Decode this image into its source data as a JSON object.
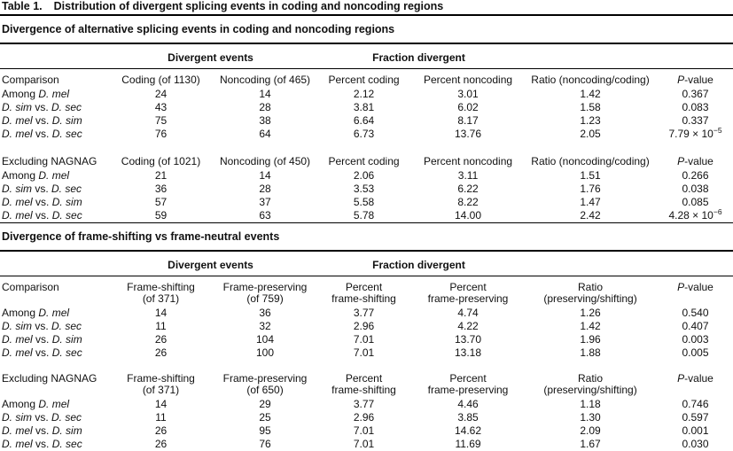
{
  "caption": {
    "label": "Table 1.",
    "text": "Distribution of divergent splicing events in coding and noncoding regions"
  },
  "sections": [
    {
      "title": "Divergence of alternative splicing events in coding and noncoding regions",
      "spanners": [
        "Divergent events",
        "Fraction divergent"
      ],
      "blocks": [
        {
          "header": [
            "Comparison",
            "Coding (of 1130)",
            "Noncoding (of 465)",
            "Percent coding",
            "Percent noncoding",
            "Ratio (noncoding/coding)",
            [
              {
                "t": "P",
                "i": true
              },
              {
                "t": "-value"
              }
            ]
          ],
          "rows": [
            [
              [
                {
                  "t": "Among "
                },
                {
                  "t": "D. mel",
                  "i": true
                }
              ],
              "24",
              "14",
              "2.12",
              "3.01",
              "1.42",
              "0.367"
            ],
            [
              [
                {
                  "t": "D. sim",
                  "i": true
                },
                {
                  "t": " vs. "
                },
                {
                  "t": "D. sec",
                  "i": true
                }
              ],
              "43",
              "28",
              "3.81",
              "6.02",
              "1.58",
              "0.083"
            ],
            [
              [
                {
                  "t": "D. mel",
                  "i": true
                },
                {
                  "t": " vs. "
                },
                {
                  "t": "D. sim",
                  "i": true
                }
              ],
              "75",
              "38",
              "6.64",
              "8.17",
              "1.23",
              "0.337"
            ],
            [
              [
                {
                  "t": "D. mel",
                  "i": true
                },
                {
                  "t": " vs. "
                },
                {
                  "t": "D. sec",
                  "i": true
                }
              ],
              "76",
              "64",
              "6.73",
              "13.76",
              "2.05",
              [
                {
                  "t": "7.79 × 10"
                },
                {
                  "t": "−5",
                  "sup": true
                }
              ]
            ]
          ]
        },
        {
          "header": [
            "Excluding NAGNAG",
            "Coding (of 1021)",
            "Noncoding (of 450)",
            "Percent coding",
            "Percent noncoding",
            "Ratio (noncoding/coding)",
            [
              {
                "t": "P",
                "i": true
              },
              {
                "t": "-value"
              }
            ]
          ],
          "rows": [
            [
              [
                {
                  "t": "Among "
                },
                {
                  "t": "D. mel",
                  "i": true
                }
              ],
              "21",
              "14",
              "2.06",
              "3.11",
              "1.51",
              "0.266"
            ],
            [
              [
                {
                  "t": "D. sim",
                  "i": true
                },
                {
                  "t": " vs. "
                },
                {
                  "t": "D. sec",
                  "i": true
                }
              ],
              "36",
              "28",
              "3.53",
              "6.22",
              "1.76",
              "0.038"
            ],
            [
              [
                {
                  "t": "D. mel",
                  "i": true
                },
                {
                  "t": " vs. "
                },
                {
                  "t": "D. sim",
                  "i": true
                }
              ],
              "57",
              "37",
              "5.58",
              "8.22",
              "1.47",
              "0.085"
            ],
            [
              [
                {
                  "t": "D. mel",
                  "i": true
                },
                {
                  "t": " vs. "
                },
                {
                  "t": "D. sec",
                  "i": true
                }
              ],
              "59",
              "63",
              "5.78",
              "14.00",
              "2.42",
              [
                {
                  "t": "4.28 × 10"
                },
                {
                  "t": "−6",
                  "sup": true
                }
              ]
            ]
          ]
        }
      ]
    },
    {
      "title": "Divergence of frame-shifting vs frame-neutral events",
      "spanners": [
        "Divergent events",
        "Fraction divergent"
      ],
      "blocks": [
        {
          "header": [
            "Comparison",
            "Frame-shifting\n(of 371)",
            "Frame-preserving\n(of 759)",
            "Percent\nframe-shifting",
            "Percent\nframe-preserving",
            "Ratio\n(preserving/shifting)",
            [
              {
                "t": "P",
                "i": true
              },
              {
                "t": "-value"
              }
            ]
          ],
          "rows": [
            [
              [
                {
                  "t": "Among "
                },
                {
                  "t": "D. mel",
                  "i": true
                }
              ],
              "14",
              "36",
              "3.77",
              "4.74",
              "1.26",
              "0.540"
            ],
            [
              [
                {
                  "t": "D. sim",
                  "i": true
                },
                {
                  "t": " vs. "
                },
                {
                  "t": "D. sec",
                  "i": true
                }
              ],
              "11",
              "32",
              "2.96",
              "4.22",
              "1.42",
              "0.407"
            ],
            [
              [
                {
                  "t": "D. mel",
                  "i": true
                },
                {
                  "t": " vs. "
                },
                {
                  "t": "D. sim",
                  "i": true
                }
              ],
              "26",
              "104",
              "7.01",
              "13.70",
              "1.96",
              "0.003"
            ],
            [
              [
                {
                  "t": "D. mel",
                  "i": true
                },
                {
                  "t": " vs. "
                },
                {
                  "t": "D. sec",
                  "i": true
                }
              ],
              "26",
              "100",
              "7.01",
              "13.18",
              "1.88",
              "0.005"
            ]
          ]
        },
        {
          "header": [
            "Excluding NAGNAG",
            "Frame-shifting\n(of 371)",
            "Frame-preserving\n(of 650)",
            "Percent\nframe-shifting",
            "Percent\nframe-preserving",
            "Ratio\n(preserving/shifting)",
            [
              {
                "t": "P",
                "i": true
              },
              {
                "t": "-value"
              }
            ]
          ],
          "rows": [
            [
              [
                {
                  "t": "Among "
                },
                {
                  "t": "D. mel",
                  "i": true
                }
              ],
              "14",
              "29",
              "3.77",
              "4.46",
              "1.18",
              "0.746"
            ],
            [
              [
                {
                  "t": "D. sim",
                  "i": true
                },
                {
                  "t": " vs. "
                },
                {
                  "t": "D. sec",
                  "i": true
                }
              ],
              "11",
              "25",
              "2.96",
              "3.85",
              "1.30",
              "0.597"
            ],
            [
              [
                {
                  "t": "D. mel",
                  "i": true
                },
                {
                  "t": " vs. "
                },
                {
                  "t": "D. sim",
                  "i": true
                }
              ],
              "26",
              "95",
              "7.01",
              "14.62",
              "2.09",
              "0.001"
            ],
            [
              [
                {
                  "t": "D. mel",
                  "i": true
                },
                {
                  "t": " vs. "
                },
                {
                  "t": "D. sec",
                  "i": true
                }
              ],
              "26",
              "76",
              "7.01",
              "11.69",
              "1.67",
              "0.030"
            ]
          ]
        }
      ]
    }
  ]
}
